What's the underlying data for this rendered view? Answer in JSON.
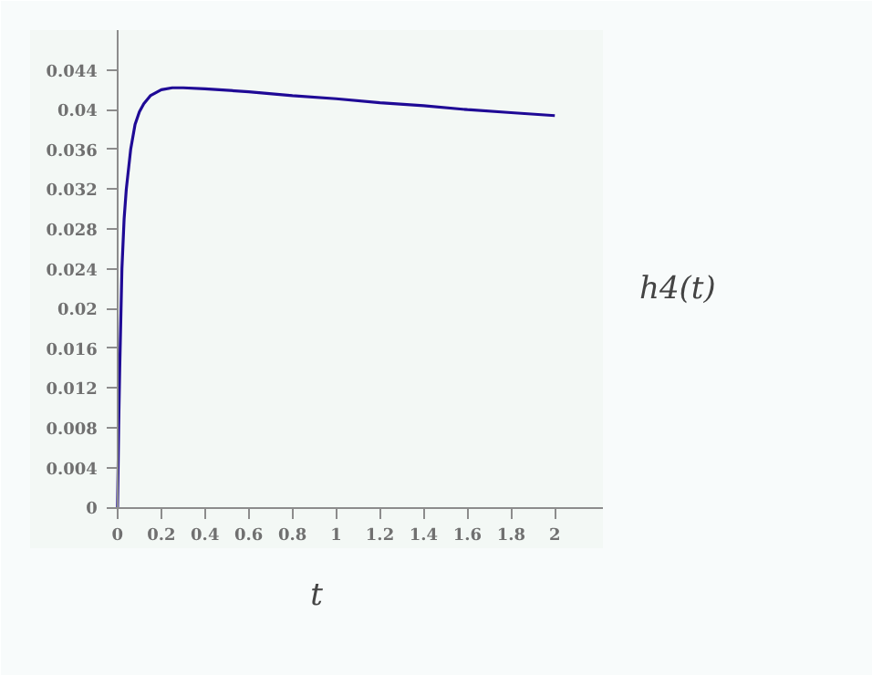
{
  "chart_data": {
    "type": "line",
    "xlabel": "t",
    "ylabel": "h4(t)",
    "x": [
      0,
      0.005,
      0.01,
      0.02,
      0.03,
      0.04,
      0.06,
      0.08,
      0.1,
      0.12,
      0.15,
      0.2,
      0.25,
      0.3,
      0.4,
      0.6,
      0.8,
      1.0,
      1.2,
      1.4,
      1.6,
      1.8,
      2.0
    ],
    "series": [
      {
        "color": "#1f0a96",
        "values": [
          0,
          0.008,
          0.014,
          0.024,
          0.029,
          0.032,
          0.036,
          0.0385,
          0.0398,
          0.0406,
          0.0414,
          0.042,
          0.0422,
          0.0422,
          0.0421,
          0.0418,
          0.0414,
          0.0411,
          0.0407,
          0.0404,
          0.04,
          0.0397,
          0.0394
        ]
      }
    ],
    "xlim": [
      -0.4,
      2.22
    ],
    "ylim": [
      -0.0041,
      0.048
    ],
    "xticks": [
      0,
      0.2,
      0.4,
      0.6,
      0.8,
      1,
      1.2,
      1.4,
      1.6,
      1.8,
      2
    ],
    "yticks": [
      0,
      0.004,
      0.008,
      0.012,
      0.016,
      0.02,
      0.024,
      0.028,
      0.032,
      0.036,
      0.04,
      0.044
    ],
    "marker": "none",
    "line_style": "solid"
  }
}
